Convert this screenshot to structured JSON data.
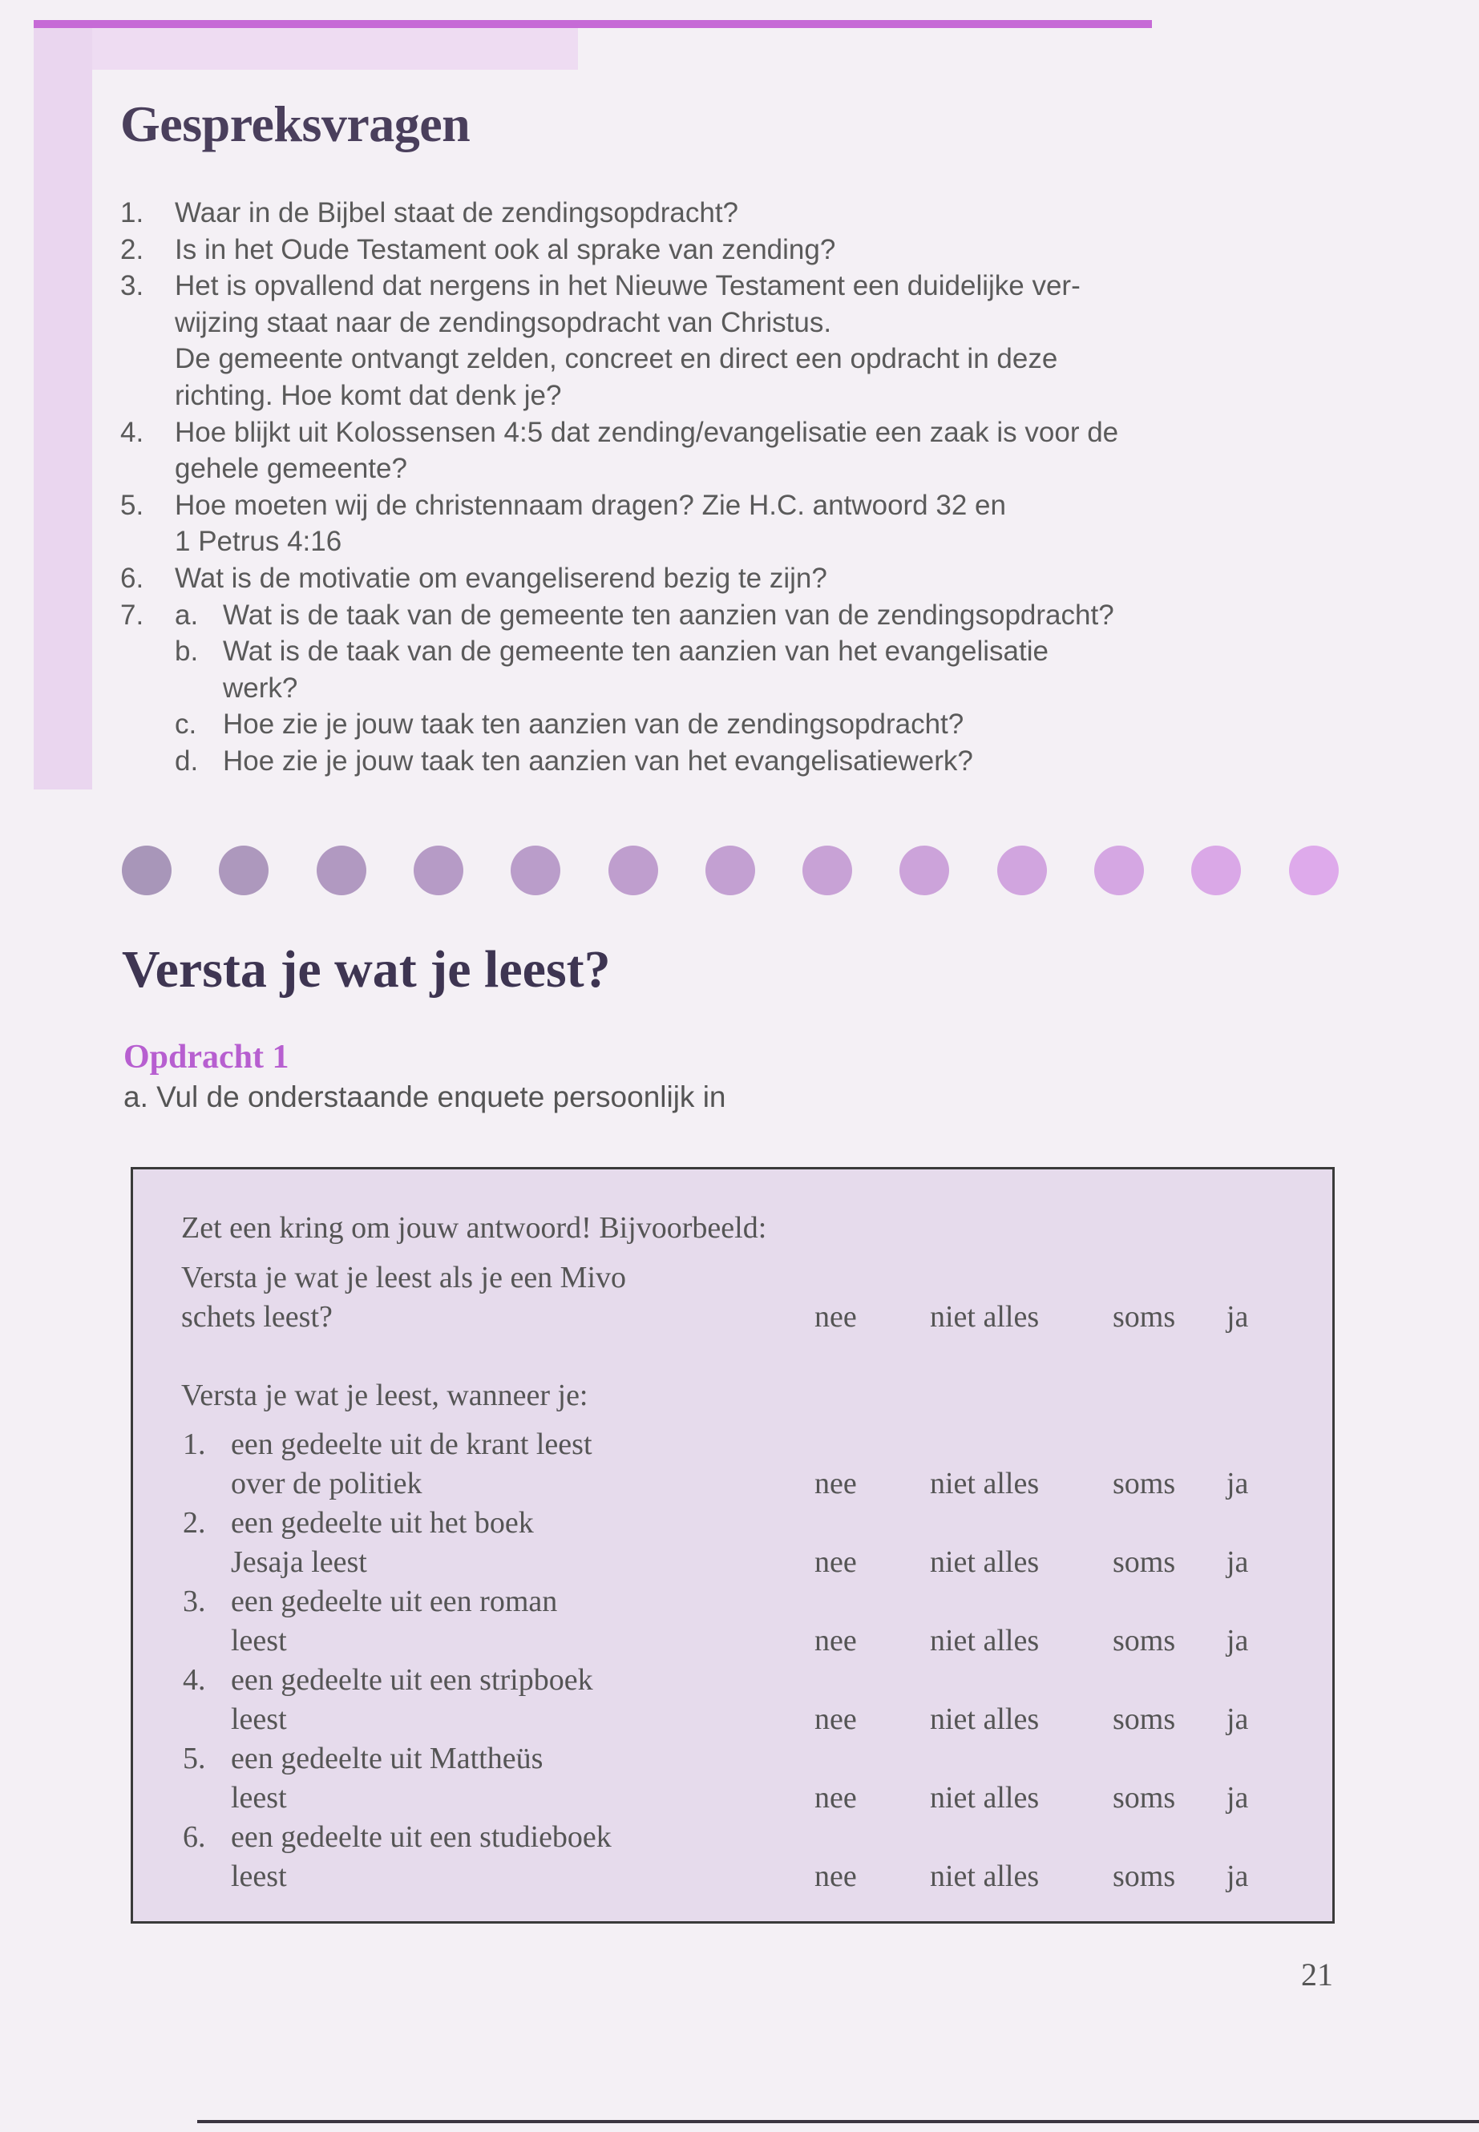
{
  "colors": {
    "accent": "#c66ad6",
    "heading": "#4a3f5c",
    "subheading": "#b75fd0",
    "box_fill": "#e6dbec"
  },
  "section1": {
    "title": "Gespreksvragen",
    "questions": [
      {
        "num": "1.",
        "lines": [
          "Waar in de Bijbel staat de zendingsopdracht?"
        ]
      },
      {
        "num": "2.",
        "lines": [
          "Is in het Oude Testament ook al sprake van zending?"
        ]
      },
      {
        "num": "3.",
        "lines": [
          "Het is opvallend dat nergens in het Nieuwe Testament een duidelijke ver-",
          "wijzing staat naar de zendingsopdracht van Christus.",
          "De gemeente ontvangt zelden, concreet en direct een opdracht in deze",
          "richting. Hoe komt dat denk je?"
        ]
      },
      {
        "num": "4.",
        "lines": [
          "Hoe blijkt uit Kolossensen 4:5 dat zending/evangelisatie een zaak is voor  de",
          "gehele gemeente?"
        ]
      },
      {
        "num": "5.",
        "lines": [
          "Hoe moeten wij de christennaam dragen? Zie H.C. antwoord 32 en",
          "1 Petrus 4:16"
        ]
      },
      {
        "num": "6.",
        "lines": [
          "Wat is de motivatie om evangeliserend bezig te zijn?"
        ]
      },
      {
        "num": "7.",
        "sub": [
          {
            "letter": "a.",
            "lines": [
              "Wat is de taak van de gemeente ten aanzien van de zendingsopdracht?"
            ]
          },
          {
            "letter": "b.",
            "lines": [
              "Wat is de taak van de gemeente ten aanzien van het evangelisatie",
              "werk?"
            ]
          },
          {
            "letter": "c.",
            "lines": [
              "Hoe zie je jouw taak ten aanzien van de zendingsopdracht?"
            ]
          },
          {
            "letter": "d.",
            "lines": [
              "Hoe zie je jouw taak ten aanzien van het evangelisatiewerk?"
            ]
          }
        ]
      }
    ]
  },
  "divider_dots": 13,
  "section2": {
    "title": "Versta je wat je leest?",
    "assignment": "Opdracht 1",
    "instruction": "a. Vul de onderstaande enquete persoonlijk in",
    "box": {
      "intro": "Zet een kring om jouw antwoord! Bijvoorbeeld:",
      "example_lines": [
        "Versta je wat je leest als je een Mivo",
        "schets leest?"
      ],
      "options": [
        "nee",
        "niet alles",
        "soms",
        "ja"
      ],
      "question": "Versta je wat je leest, wanneer je:",
      "items": [
        {
          "num": "1.",
          "lines": [
            "een gedeelte uit de krant leest",
            "over de politiek"
          ]
        },
        {
          "num": "2.",
          "lines": [
            "een gedeelte uit het boek",
            "Jesaja leest"
          ]
        },
        {
          "num": "3.",
          "lines": [
            "een gedeelte uit een roman",
            "leest"
          ]
        },
        {
          "num": "4.",
          "lines": [
            "een gedeelte uit een stripboek",
            "leest"
          ]
        },
        {
          "num": "5.",
          "lines": [
            "een gedeelte uit Mattheüs",
            "leest"
          ]
        },
        {
          "num": "6.",
          "lines": [
            "een gedeelte uit een studieboek",
            "leest"
          ]
        }
      ]
    }
  },
  "page_number": "21"
}
